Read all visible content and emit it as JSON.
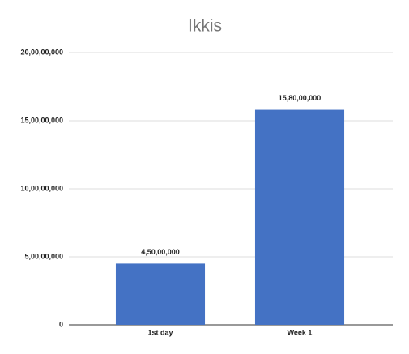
{
  "chart_data": {
    "type": "bar",
    "title": "Ikkis",
    "categories": [
      "1st day",
      "Week 1"
    ],
    "values": [
      45000000,
      158000000
    ],
    "value_labels": [
      "4,50,00,000",
      "15,80,00,000"
    ],
    "color": "#4472c4",
    "ylim": [
      0,
      200000000
    ],
    "yticks": [
      0,
      {
        "value": 50000000,
        "label": "5,00,00,000"
      },
      {
        "value": 100000000,
        "label": "10,00,00,000"
      },
      {
        "value": 150000000,
        "label": "15,00,00,000"
      },
      {
        "value": 200000000,
        "label": "20,00,00,000"
      }
    ],
    "grid": true
  }
}
